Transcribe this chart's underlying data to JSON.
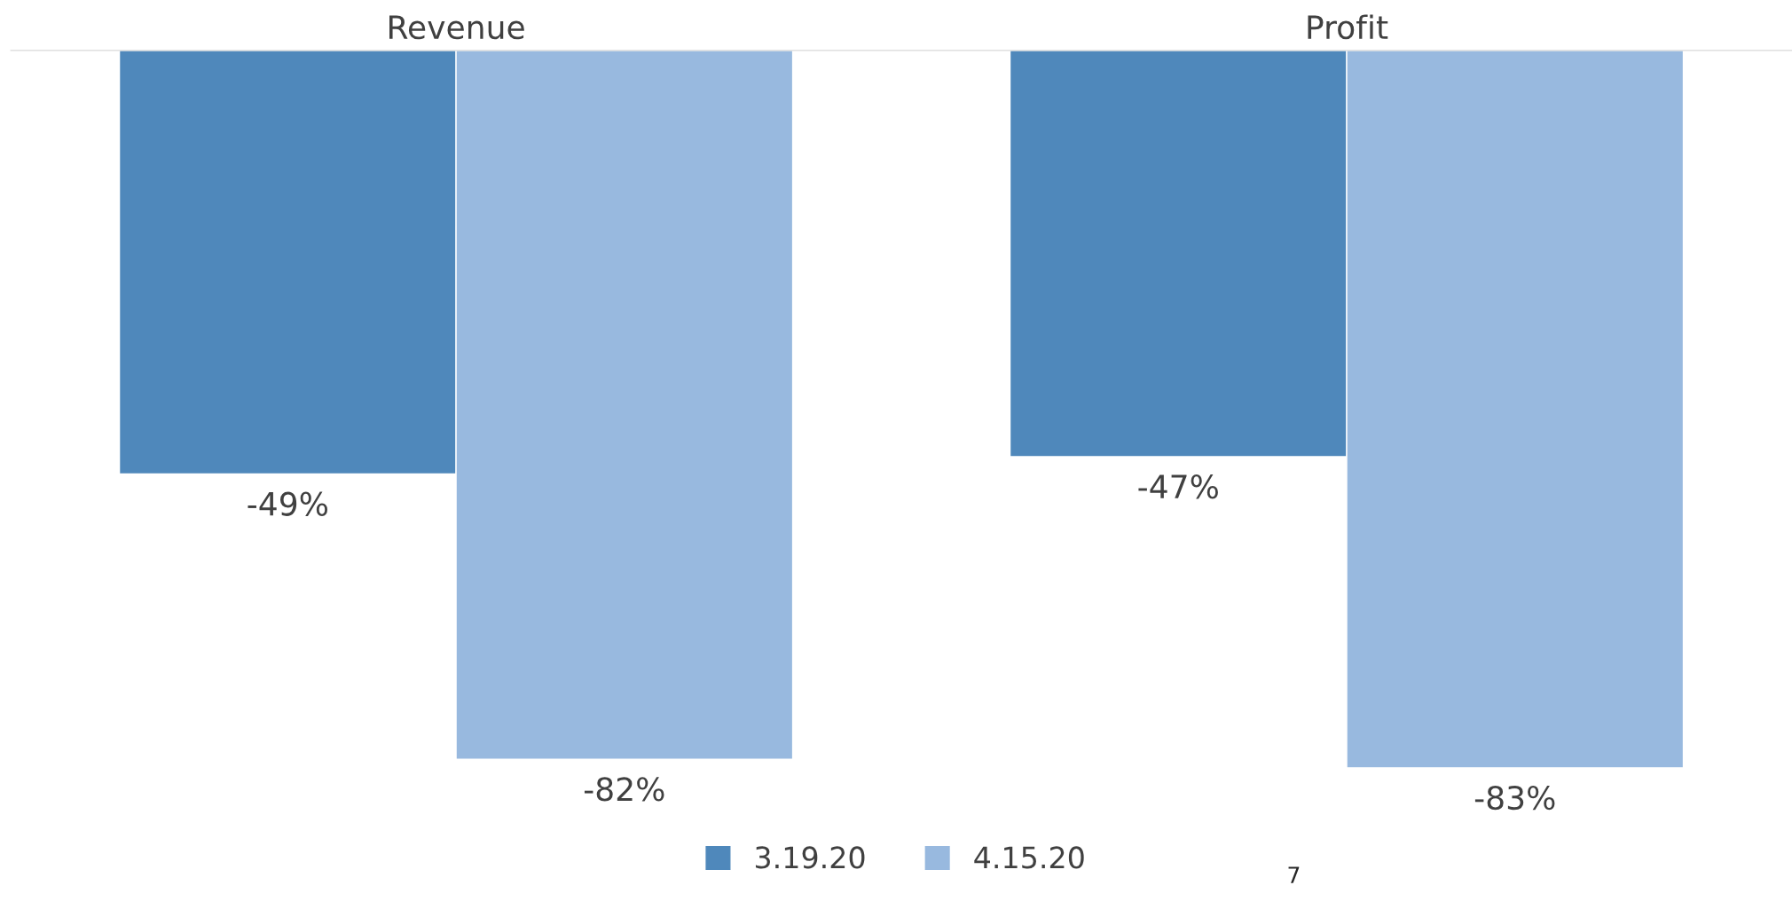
{
  "chart_data": {
    "type": "bar",
    "categories": [
      "Revenue",
      "Profit"
    ],
    "series": [
      {
        "name": "3.19.20",
        "color": "#4f88bb",
        "values": [
          -49,
          -47
        ],
        "value_labels": [
          "-49%",
          "-47%"
        ]
      },
      {
        "name": "4.15.20",
        "color": "#98b9df",
        "values": [
          -82,
          -83
        ],
        "value_labels": [
          "-82%",
          "-83%"
        ]
      }
    ],
    "tick_labels": "x",
    "grid": false,
    "legend": "bottom",
    "annotations": [
      "7"
    ]
  }
}
